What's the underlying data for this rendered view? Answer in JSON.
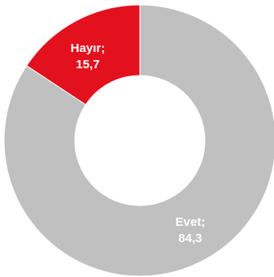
{
  "chart_data": {
    "type": "pie",
    "variant": "donut",
    "title": "",
    "slices": [
      {
        "name": "Hayır",
        "value": 15.7,
        "color": "#e3101e",
        "label_line1": "Hayır;",
        "label_line2": "15,7"
      },
      {
        "name": "Evet",
        "value": 84.3,
        "color": "#c0c0c0",
        "label_line1": "Evet;",
        "label_line2": "84,3"
      }
    ],
    "legend": "none"
  }
}
